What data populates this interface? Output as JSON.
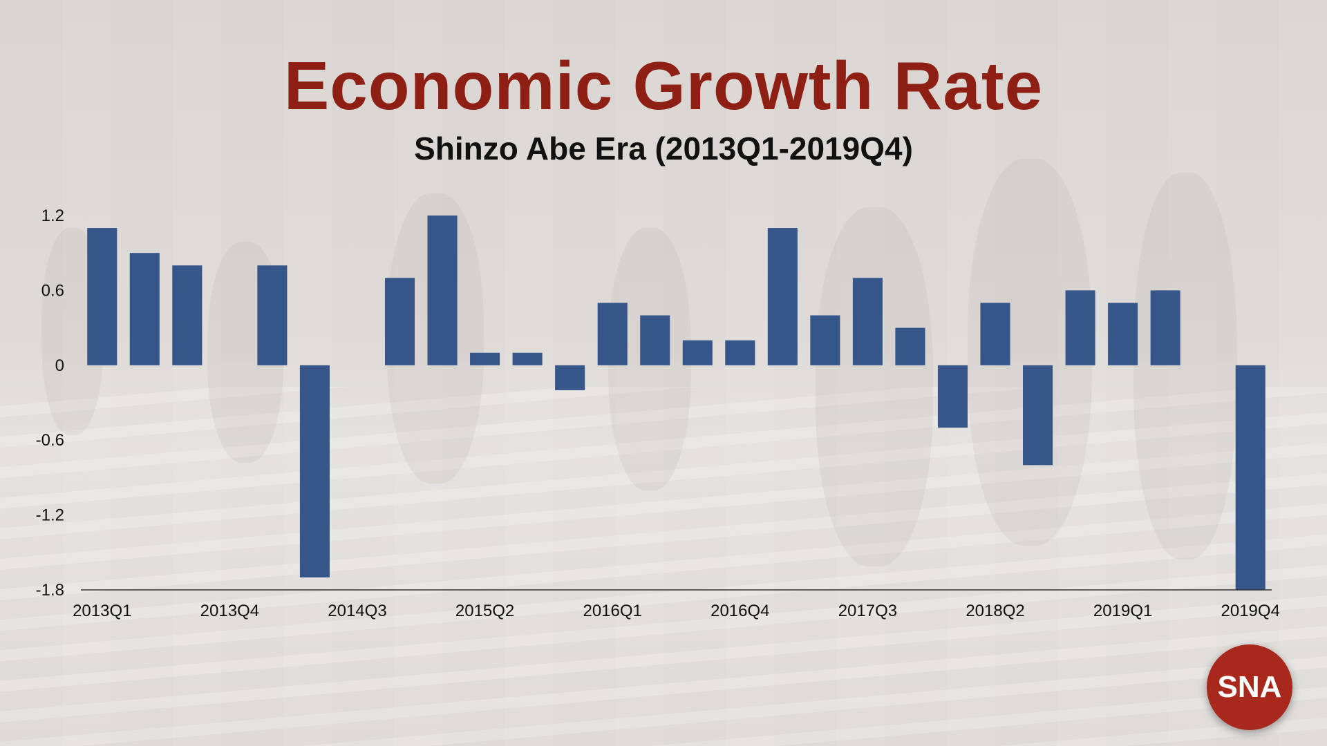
{
  "title": "Economic Growth Rate",
  "subtitle": "Shinzo Abe Era (2013Q1-2019Q4)",
  "badge": "SNA",
  "colors": {
    "bar": "#36568a",
    "title": "#8e1f14",
    "badge": "#a8281c"
  },
  "chart_data": {
    "type": "bar",
    "categories": [
      "2013Q1",
      "2013Q2",
      "2013Q3",
      "2013Q4",
      "2014Q1",
      "2014Q2",
      "2014Q3",
      "2014Q4",
      "2015Q1",
      "2015Q2",
      "2015Q3",
      "2015Q4",
      "2016Q1",
      "2016Q2",
      "2016Q3",
      "2016Q4",
      "2017Q1",
      "2017Q2",
      "2017Q3",
      "2017Q4",
      "2018Q1",
      "2018Q2",
      "2018Q3",
      "2018Q4",
      "2019Q1",
      "2019Q2",
      "2019Q3",
      "2019Q4"
    ],
    "values": [
      1.1,
      0.9,
      0.8,
      0,
      0.8,
      -1.7,
      0,
      0.7,
      1.2,
      0.1,
      0.1,
      -0.2,
      0.5,
      0.4,
      0.2,
      0.2,
      1.1,
      0.4,
      0.7,
      0.3,
      -0.5,
      0.5,
      -0.8,
      0.6,
      0.5,
      0.6,
      0,
      -1.8
    ],
    "x_tick_labels": [
      "2013Q1",
      "2013Q4",
      "2014Q3",
      "2015Q2",
      "2016Q1",
      "2016Q4",
      "2017Q3",
      "2018Q2",
      "2019Q1",
      "2019Q4"
    ],
    "y_ticks": [
      "1.2",
      "0.6",
      "0",
      "-0.6",
      "-1.2",
      "-1.8"
    ],
    "ylim": [
      -1.8,
      1.2
    ],
    "xlabel": "",
    "ylabel": "",
    "grid": false,
    "legend": "none"
  }
}
